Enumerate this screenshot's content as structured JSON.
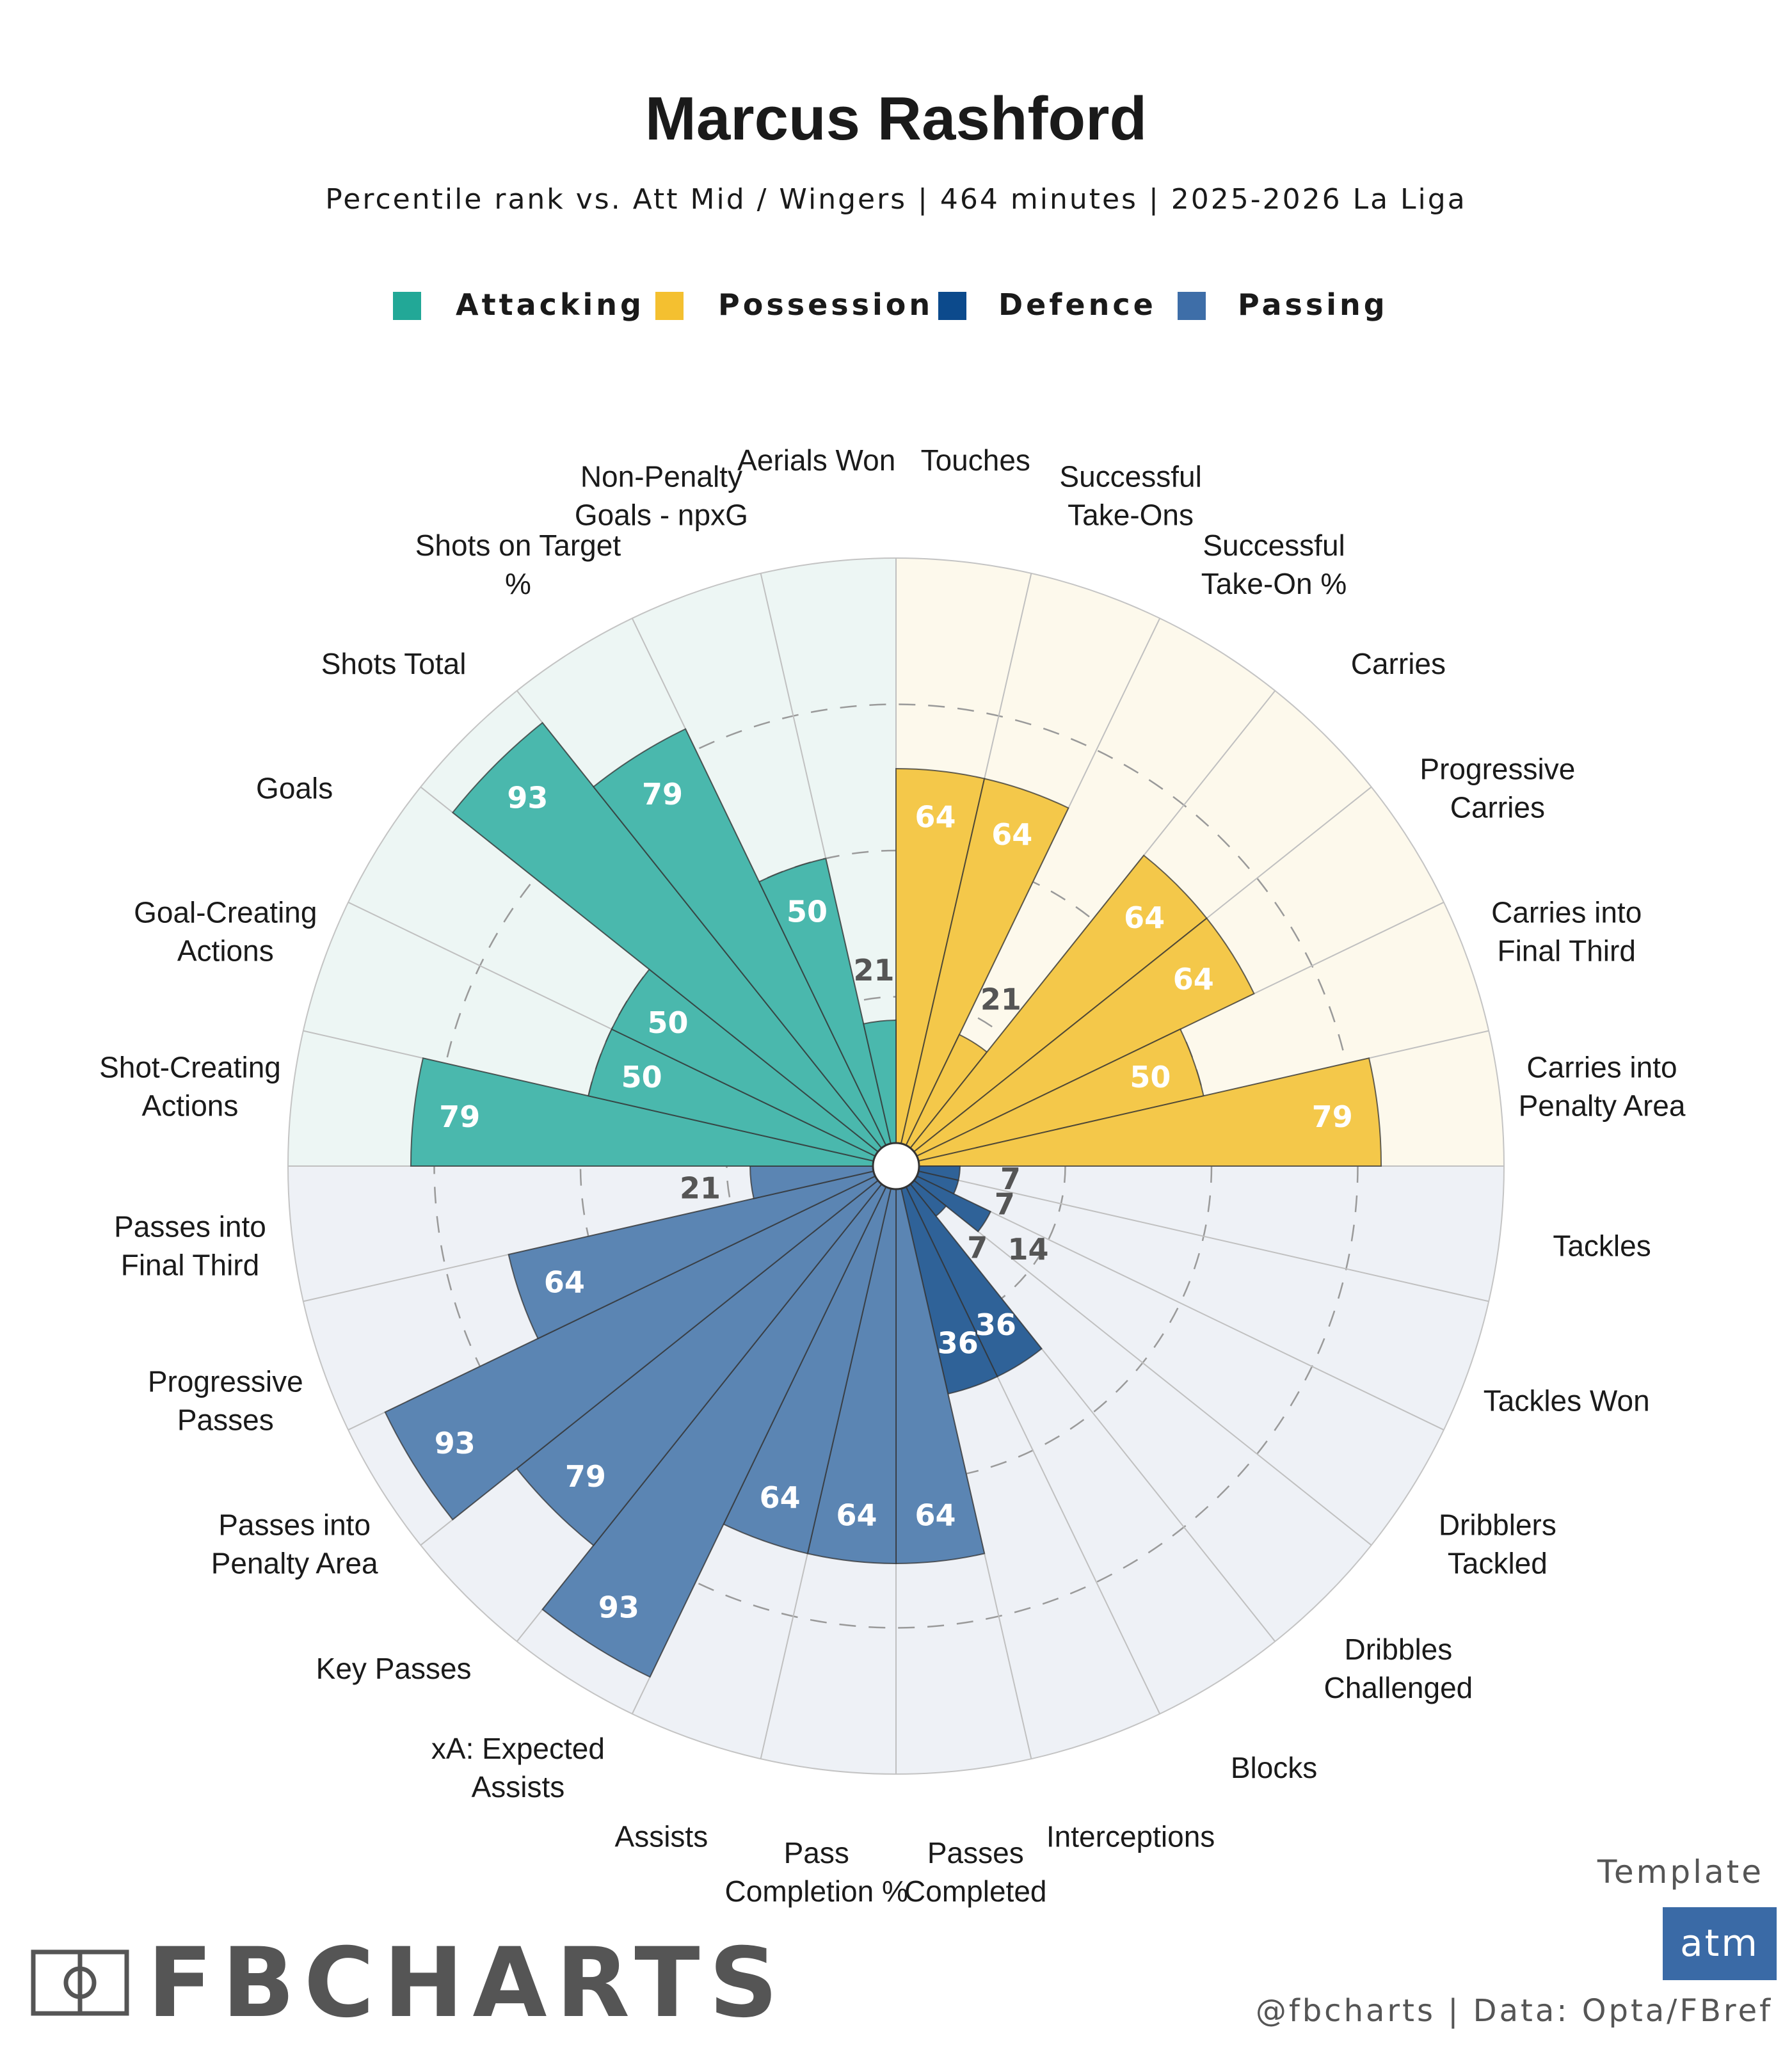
{
  "header": {
    "title": "Marcus Rashford",
    "subtitle": "Percentile rank vs. Att Mid / Wingers | 464 minutes | 2025-2026 La Liga"
  },
  "legend": [
    {
      "name": "Attacking",
      "color": "#22a897"
    },
    {
      "name": "Possession",
      "color": "#f4c030"
    },
    {
      "name": "Defence",
      "color": "#0c4a8c"
    },
    {
      "name": "Passing",
      "color": "#3e6ea8"
    }
  ],
  "chart_data": {
    "type": "polar_bar",
    "title": "Marcus Rashford",
    "rlim": [
      0,
      100
    ],
    "gridlines": [
      25,
      50,
      75
    ],
    "categories": [
      "Touches",
      "Successful Take-Ons",
      "Successful Take-On %",
      "Carries",
      "Progressive Carries",
      "Carries into Final Third",
      "Carries into Penalty Area",
      "Tackles",
      "Tackles Won",
      "Dribblers Tackled",
      "Dribbles Challenged",
      "Blocks",
      "Interceptions",
      "Passes Completed",
      "Pass Completion %",
      "Assists",
      "xA: Expected Assists",
      "Key Passes",
      "Passes into Penalty Area",
      "Progressive Passes",
      "Passes into Final Third",
      "Shot-Creating Actions",
      "Goal-Creating Actions",
      "Goals",
      "Shots Total",
      "Shots on Target %",
      "Non-Penalty Goals - npxG",
      "Aerials Won"
    ],
    "display_labels": [
      "Touches",
      "Successful\nTake-Ons",
      "Successful\nTake-On %",
      "Carries",
      "Progressive\nCarries",
      "Carries into\nFinal Third",
      "Carries into\nPenalty Area",
      "Tackles",
      "Tackles Won",
      "Dribblers\nTackled",
      "Dribbles\nChallenged",
      "Blocks",
      "Interceptions",
      "Passes\nCompleted",
      "Pass\nCompletion %",
      "Assists",
      "xA: Expected\nAssists",
      "Key Passes",
      "Passes into\nPenalty Area",
      "Progressive\nPasses",
      "Passes into\nFinal Third",
      "Shot-Creating\nActions",
      "Goal-Creating\nActions",
      "Goals",
      "Shots Total",
      "Shots on Target\n%",
      "Non-Penalty\nGoals - npxG",
      "Aerials Won"
    ],
    "values": [
      64,
      64,
      21,
      64,
      64,
      50,
      79,
      7,
      7,
      14,
      7,
      36,
      36,
      64,
      64,
      64,
      93,
      79,
      93,
      64,
      21,
      79,
      50,
      50,
      93,
      79,
      50,
      21
    ],
    "groups": [
      "Possession",
      "Possession",
      "Possession",
      "Possession",
      "Possession",
      "Possession",
      "Possession",
      "Defence",
      "Defence",
      "Defence",
      "Defence",
      "Defence",
      "Defence",
      "Passing",
      "Passing",
      "Passing",
      "Passing",
      "Passing",
      "Passing",
      "Passing",
      "Passing",
      "Attacking",
      "Attacking",
      "Attacking",
      "Attacking",
      "Attacking",
      "Attacking",
      "Attacking"
    ],
    "group_colors": {
      "Attacking": {
        "fill": "#4ab8ad",
        "bg": "#edf6f4",
        "label_bg": "#22a897"
      },
      "Possession": {
        "fill": "#f4c84a",
        "bg": "#fdf9ec",
        "label_bg": "#f4c030"
      },
      "Defence": {
        "fill": "#2f6298",
        "bg": "#eef1f6",
        "label_bg": "#0c4a8c"
      },
      "Passing": {
        "fill": "#5b85b3",
        "bg": "#eef1f6",
        "label_bg": "#3e6ea8"
      }
    }
  },
  "footer": {
    "brand": "FBCHARTS",
    "template_label": "Template",
    "template_code": "atm",
    "credit": "@fbcharts | Data: Opta/FBref"
  }
}
